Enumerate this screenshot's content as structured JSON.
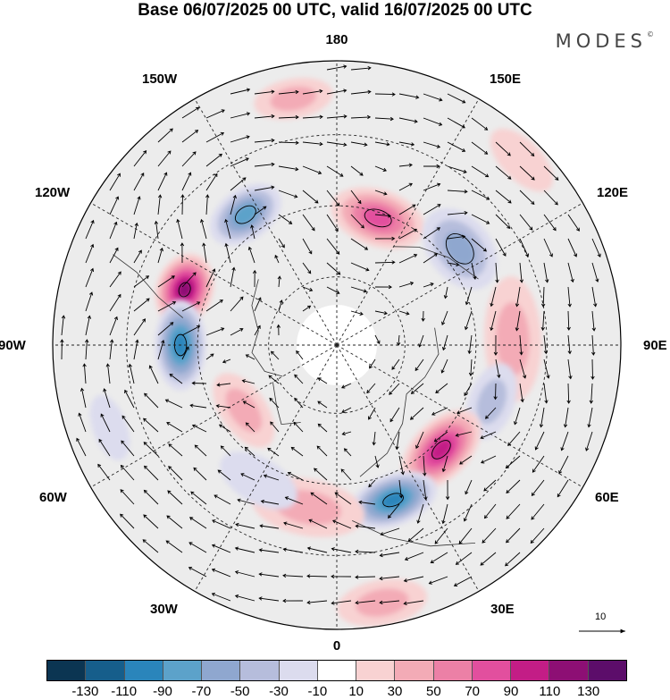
{
  "title": "Base 06/07/2025 00 UTC, valid 16/07/2025 00 UTC",
  "brand": {
    "name": "MODES",
    "mark": "©"
  },
  "map": {
    "projection": "north polar stereographic",
    "longitude_labels": [
      "180",
      "150E",
      "120E",
      "90E",
      "60E",
      "30E",
      "0",
      "30W",
      "60W",
      "90W",
      "120W",
      "150W"
    ],
    "graticule": "dashed",
    "wind_reference_vector": "10",
    "anomaly_cells": [
      {
        "lon": 215,
        "r": 0.56,
        "value": -75,
        "rx": 0.14,
        "ry": 0.09
      },
      {
        "lon": 162,
        "r": 0.47,
        "value": 85,
        "rx": 0.17,
        "ry": 0.1
      },
      {
        "lon": 128,
        "r": 0.55,
        "value": -65,
        "rx": 0.16,
        "ry": 0.11
      },
      {
        "lon": 92,
        "r": 0.62,
        "value": 45,
        "rx": 0.22,
        "ry": 0.1
      },
      {
        "lon": 70,
        "r": 0.58,
        "value": -45,
        "rx": 0.14,
        "ry": 0.08
      },
      {
        "lon": 45,
        "r": 0.52,
        "value": 90,
        "rx": 0.17,
        "ry": 0.1
      },
      {
        "lon": 20,
        "r": 0.58,
        "value": -95,
        "rx": 0.16,
        "ry": 0.09
      },
      {
        "lon": 250,
        "r": 0.57,
        "value": 115,
        "rx": 0.13,
        "ry": 0.1
      },
      {
        "lon": 270,
        "r": 0.55,
        "value": -105,
        "rx": 0.16,
        "ry": 0.09
      },
      {
        "lon": 305,
        "r": 0.4,
        "value": 35,
        "rx": 0.15,
        "ry": 0.08
      },
      {
        "lon": 350,
        "r": 0.58,
        "value": 35,
        "rx": 0.2,
        "ry": 0.1
      },
      {
        "lon": 330,
        "r": 0.55,
        "value": -25,
        "rx": 0.15,
        "ry": 0.08
      },
      {
        "lon": 190,
        "r": 0.88,
        "value": 30,
        "rx": 0.14,
        "ry": 0.07
      },
      {
        "lon": 135,
        "r": 0.92,
        "value": 25,
        "rx": 0.14,
        "ry": 0.07
      },
      {
        "lon": 10,
        "r": 0.92,
        "value": 35,
        "rx": 0.16,
        "ry": 0.08
      },
      {
        "lon": 290,
        "r": 0.85,
        "value": -20,
        "rx": 0.12,
        "ry": 0.06
      }
    ]
  },
  "colorbar": {
    "colors": [
      "#0b3552",
      "#165e8b",
      "#2a85bb",
      "#5ca2ca",
      "#8fa7cf",
      "#b6bddc",
      "#dcdcee",
      "#ffffff",
      "#f8d2d2",
      "#f3abb6",
      "#ec80a6",
      "#e24f9e",
      "#c31d86",
      "#8d0f74",
      "#5c0d6a"
    ],
    "ticks": [
      "-130",
      "-110",
      "-90",
      "-70",
      "-50",
      "-30",
      "-10",
      "10",
      "30",
      "50",
      "70",
      "90",
      "110",
      "130"
    ]
  }
}
